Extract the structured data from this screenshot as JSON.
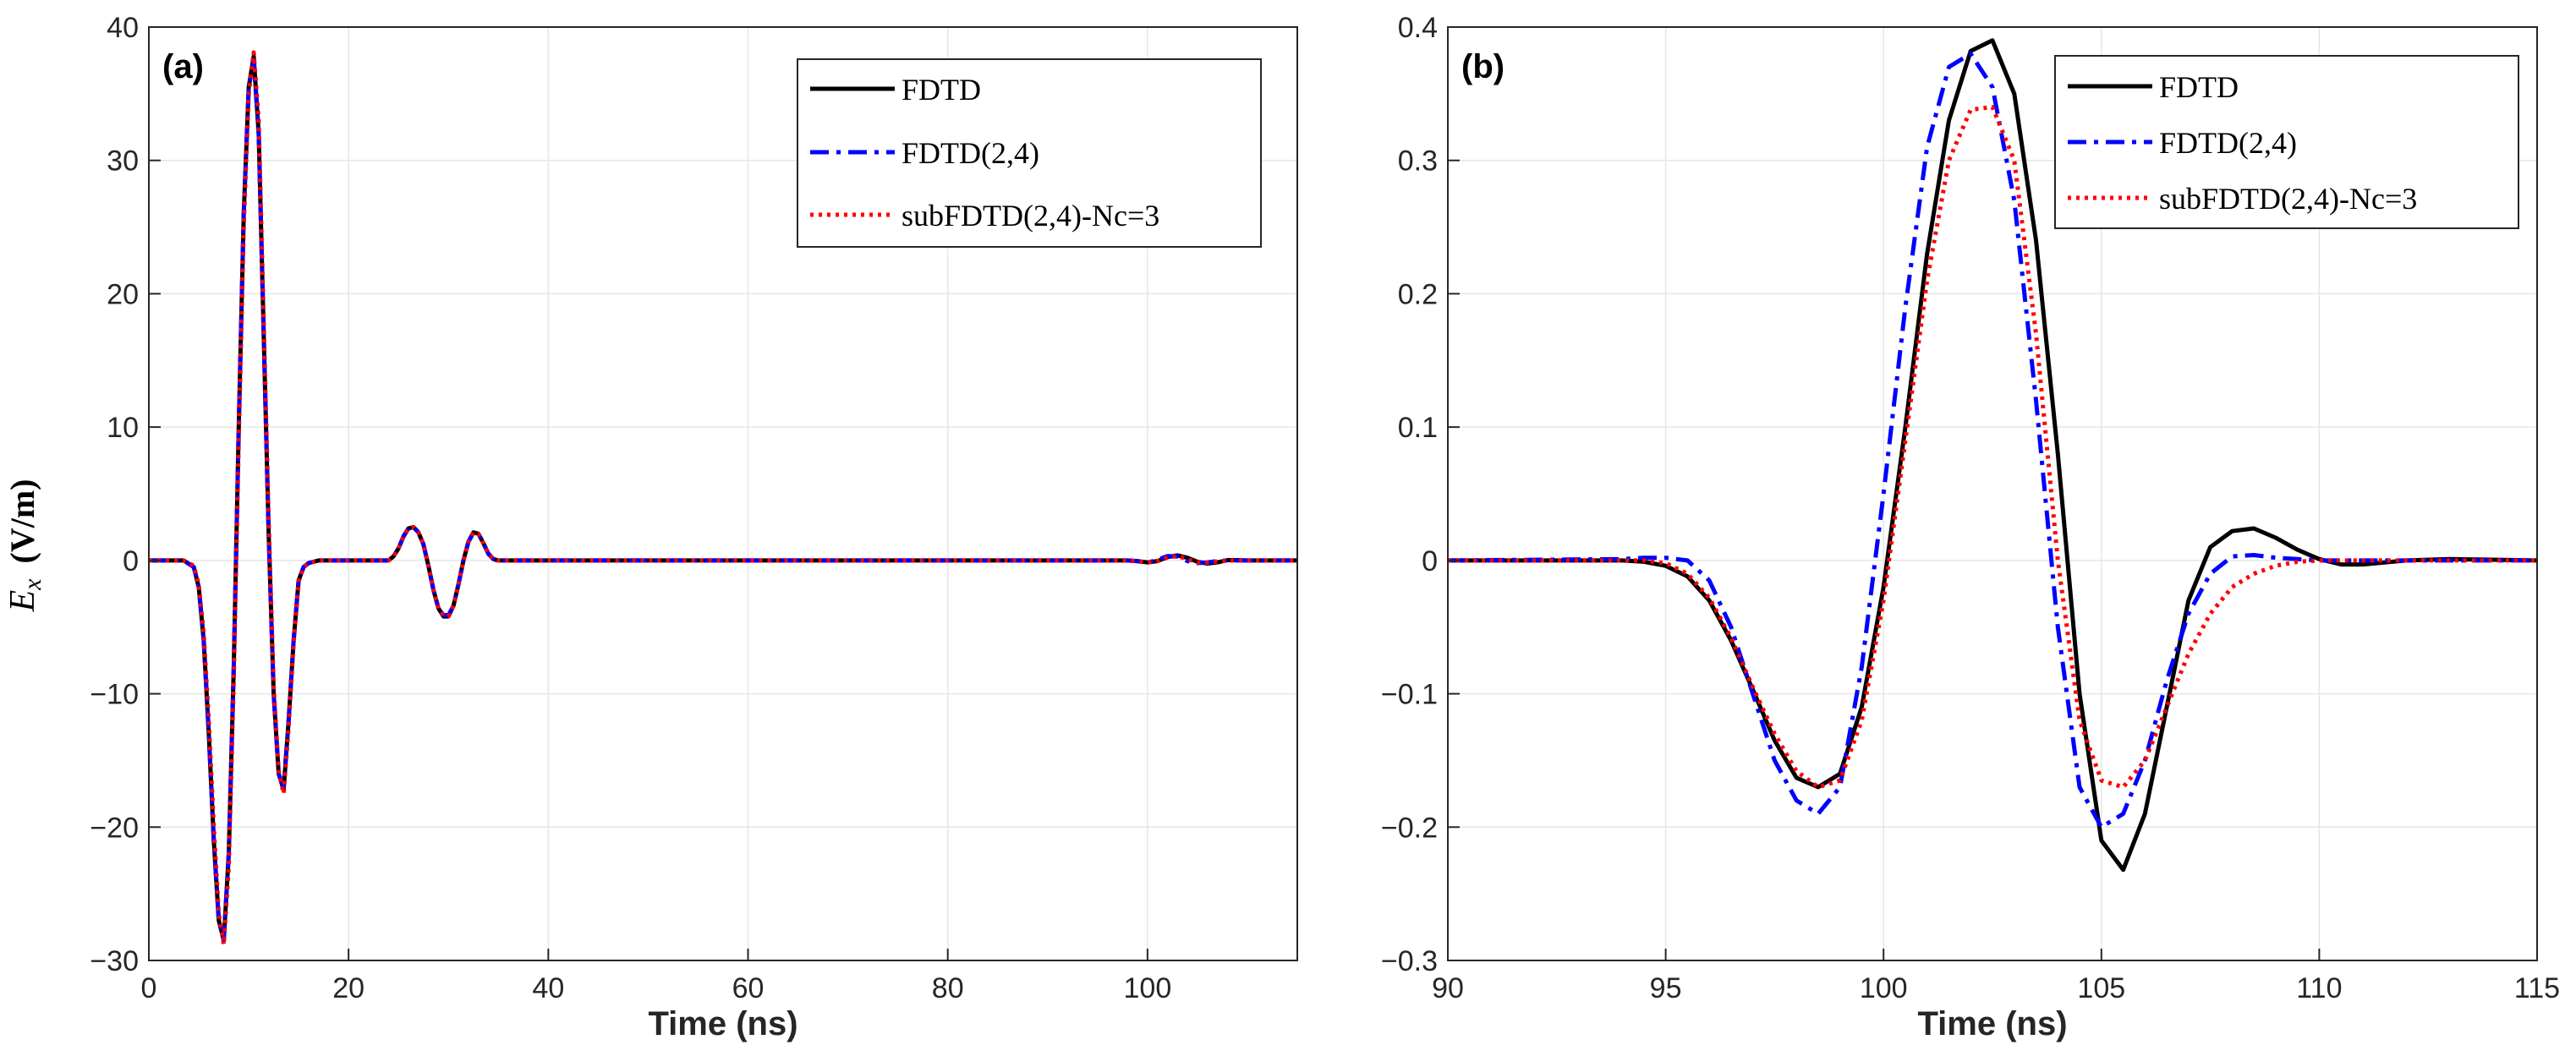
{
  "colors": {
    "grid": "#e6e6e6",
    "axis": "#262626",
    "fdtd": "#000000",
    "fdtd24": "#0000ff",
    "sub": "#ff0000"
  },
  "ylabel": {
    "main": "E",
    "sub": "x",
    "unit": "(V/m)"
  },
  "chart_data": [
    {
      "type": "line",
      "panel_label": "(a)",
      "xlabel": "Time (ns)",
      "xlim": [
        0,
        115
      ],
      "ylim": [
        -30,
        40
      ],
      "xticks": [
        0,
        20,
        40,
        60,
        80,
        100
      ],
      "yticks": [
        -30,
        -20,
        -10,
        0,
        10,
        20,
        30,
        40
      ],
      "xtick_labels": [
        "0",
        "20",
        "40",
        "60",
        "80",
        "100"
      ],
      "ytick_labels": [
        "−30",
        "−20",
        "−10",
        "0",
        "10",
        "20",
        "30",
        "40"
      ],
      "grid": true,
      "legend_position": "top-right",
      "series": [
        {
          "name": "FDTD",
          "style": "solid",
          "color": "#000000",
          "x": [
            0,
            3.5,
            4.5,
            5,
            5.5,
            6,
            6.5,
            7,
            7.5,
            8,
            8.5,
            9,
            9.5,
            10,
            10.5,
            11,
            11.5,
            12,
            12.5,
            13,
            13.5,
            14,
            14.5,
            15,
            15.5,
            16,
            17,
            20,
            24,
            24.5,
            25,
            25.5,
            26,
            26.5,
            27,
            27.5,
            28,
            28.5,
            29,
            29.5,
            30,
            30.5,
            31,
            31.5,
            32,
            32.5,
            33,
            33.5,
            34,
            34.5,
            35,
            35.5,
            36,
            98,
            99,
            100,
            101,
            102,
            103,
            104,
            105,
            106,
            107,
            108,
            109,
            110,
            115
          ],
          "y": [
            0,
            0,
            -0.5,
            -2,
            -6,
            -13,
            -21,
            -27,
            -28.5,
            -22,
            -8,
            10,
            26,
            35.5,
            37.8,
            32,
            17,
            2,
            -10,
            -16,
            -17.2,
            -12,
            -6,
            -1.5,
            -0.5,
            -0.2,
            0,
            0,
            0,
            0.3,
            0.9,
            1.8,
            2.4,
            2.5,
            2.1,
            1.2,
            -0.4,
            -2.2,
            -3.6,
            -4.2,
            -4.2,
            -3.4,
            -1.8,
            0,
            1.4,
            2.1,
            2,
            1.3,
            0.5,
            0.1,
            0,
            0,
            0,
            0,
            -0.05,
            -0.15,
            -0.05,
            0.25,
            0.38,
            0.2,
            -0.1,
            -0.23,
            -0.15,
            0.02,
            0.02,
            0,
            0
          ]
        },
        {
          "name": "FDTD(2,4)",
          "style": "dashdot",
          "color": "#0000ff",
          "x": [
            0,
            3.5,
            4.5,
            5,
            5.5,
            6,
            6.5,
            7,
            7.5,
            8,
            8.5,
            9,
            9.5,
            10,
            10.5,
            11,
            11.5,
            12,
            12.5,
            13,
            13.5,
            14,
            14.5,
            15,
            15.5,
            16,
            17,
            20,
            24,
            24.5,
            25,
            25.5,
            26,
            26.5,
            27,
            27.5,
            28,
            28.5,
            29,
            29.5,
            30,
            30.5,
            31,
            31.5,
            32,
            32.5,
            33,
            33.5,
            34,
            34.5,
            35,
            35.5,
            36,
            98,
            99,
            100,
            101,
            102,
            103,
            104,
            105,
            106,
            107,
            108,
            109,
            110,
            115
          ],
          "y": [
            0,
            0,
            -0.5,
            -2,
            -6,
            -13,
            -21,
            -27,
            -28.5,
            -22,
            -8,
            10,
            26,
            35.5,
            37.5,
            32,
            17,
            2,
            -10,
            -16,
            -17,
            -12,
            -6,
            -1.5,
            -0.5,
            -0.2,
            0,
            0,
            0,
            0.3,
            0.9,
            1.8,
            2.4,
            2.5,
            2.1,
            1.2,
            -0.4,
            -2.2,
            -3.6,
            -4.1,
            -4.1,
            -3.4,
            -1.8,
            0,
            1.4,
            2.1,
            2,
            1.3,
            0.5,
            0.1,
            0,
            0,
            0,
            0,
            -0.06,
            -0.17,
            0.05,
            0.33,
            0.3,
            -0.05,
            -0.2,
            -0.15,
            -0.04,
            0,
            0,
            0,
            0
          ]
        },
        {
          "name": "subFDTD(2,4)-Nc=3",
          "style": "dotted",
          "color": "#ff0000",
          "x": [
            0,
            3.5,
            4.5,
            5,
            5.5,
            6,
            6.5,
            7,
            7.5,
            8,
            8.5,
            9,
            9.5,
            10,
            10.5,
            11,
            11.5,
            12,
            12.5,
            13,
            13.5,
            14,
            14.5,
            15,
            15.5,
            16,
            17,
            20,
            24,
            24.5,
            25,
            25.5,
            26,
            26.5,
            27,
            27.5,
            28,
            28.5,
            29,
            29.5,
            30,
            30.5,
            31,
            31.5,
            32,
            32.5,
            33,
            33.5,
            34,
            34.5,
            35,
            35.5,
            36,
            98,
            99,
            100,
            101,
            102,
            103,
            104,
            105,
            106,
            107,
            108,
            109,
            110,
            115
          ],
          "y": [
            0,
            0,
            -0.4,
            -1.8,
            -5.5,
            -12,
            -20,
            -26.5,
            -28.8,
            -23,
            -9,
            9,
            25,
            35,
            38.1,
            33,
            18,
            3,
            -9.5,
            -15.8,
            -17.5,
            -12.5,
            -6.2,
            -1.6,
            -0.5,
            -0.2,
            0,
            0,
            0,
            0.3,
            0.9,
            1.8,
            2.4,
            2.5,
            2.1,
            1.2,
            -0.4,
            -2.2,
            -3.6,
            -4.1,
            -4.2,
            -3.4,
            -1.8,
            0,
            1.4,
            2.1,
            2,
            1.3,
            0.5,
            0.1,
            0,
            0,
            0,
            0,
            -0.06,
            -0.16,
            -0.05,
            0.22,
            0.33,
            0.1,
            -0.14,
            -0.16,
            -0.08,
            -0.01,
            0,
            0,
            0
          ]
        }
      ]
    },
    {
      "type": "line",
      "panel_label": "(b)",
      "xlabel": "Time (ns)",
      "xlim": [
        90,
        115
      ],
      "ylim": [
        -0.3,
        0.4
      ],
      "xticks": [
        90,
        95,
        100,
        105,
        110,
        115
      ],
      "yticks": [
        -0.3,
        -0.2,
        -0.1,
        0,
        0.1,
        0.2,
        0.3,
        0.4
      ],
      "xtick_labels": [
        "90",
        "95",
        "100",
        "105",
        "110",
        "115"
      ],
      "ytick_labels": [
        "−0.3",
        "−0.2",
        "−0.1",
        "0",
        "0.1",
        "0.2",
        "0.3",
        "0.4"
      ],
      "grid": true,
      "legend_position": "top-right",
      "series": [
        {
          "name": "FDTD",
          "style": "solid",
          "color": "#000000",
          "x": [
            90,
            94,
            94.5,
            95,
            95.5,
            96,
            96.5,
            97,
            97.5,
            98,
            98.5,
            99,
            99.5,
            100,
            100.5,
            101,
            101.5,
            102,
            102.5,
            103,
            103.5,
            104,
            104.5,
            105,
            105.5,
            106,
            106.5,
            107,
            107.5,
            108,
            108.5,
            109,
            109.5,
            110,
            110.5,
            111,
            112,
            113,
            115
          ],
          "y": [
            0,
            0,
            -0.001,
            -0.004,
            -0.012,
            -0.03,
            -0.06,
            -0.097,
            -0.135,
            -0.163,
            -0.17,
            -0.16,
            -0.11,
            -0.02,
            0.1,
            0.23,
            0.33,
            0.382,
            0.39,
            0.35,
            0.24,
            0.08,
            -0.1,
            -0.21,
            -0.232,
            -0.19,
            -0.11,
            -0.03,
            0.01,
            0.022,
            0.024,
            0.017,
            0.008,
            0.001,
            -0.003,
            -0.003,
            0,
            0.001,
            0
          ]
        },
        {
          "name": "FDTD(2,4)",
          "style": "dashdot",
          "color": "#0000ff",
          "x": [
            90,
            94,
            94.5,
            95,
            95.5,
            96,
            96.5,
            97,
            97.5,
            98,
            98.5,
            99,
            99.5,
            100,
            100.5,
            101,
            101.5,
            102,
            102.5,
            103,
            103.5,
            104,
            104.5,
            105,
            105.5,
            106,
            106.5,
            107,
            107.5,
            108,
            108.5,
            109,
            109.5,
            110,
            110.5,
            111,
            112,
            113,
            115
          ],
          "y": [
            0,
            0.001,
            0.002,
            0.002,
            0,
            -0.015,
            -0.05,
            -0.1,
            -0.15,
            -0.18,
            -0.19,
            -0.17,
            -0.08,
            0.05,
            0.19,
            0.31,
            0.37,
            0.38,
            0.355,
            0.27,
            0.12,
            -0.05,
            -0.17,
            -0.2,
            -0.19,
            -0.15,
            -0.09,
            -0.04,
            -0.01,
            0.003,
            0.004,
            0.002,
            0.001,
            0,
            0,
            0,
            0,
            0,
            0
          ]
        },
        {
          "name": "subFDTD(2,4)-Nc=3",
          "style": "dotted",
          "color": "#ff0000",
          "x": [
            90,
            94,
            94.5,
            95,
            95.5,
            96,
            96.5,
            97,
            97.5,
            98,
            98.5,
            99,
            99.5,
            100,
            100.5,
            101,
            101.5,
            102,
            102.5,
            103,
            103.5,
            104,
            104.5,
            105,
            105.5,
            106,
            106.5,
            107,
            107.5,
            108,
            108.5,
            109,
            109.5,
            110,
            110.5,
            111,
            112,
            113,
            115
          ],
          "y": [
            0,
            0,
            0,
            -0.002,
            -0.01,
            -0.028,
            -0.058,
            -0.095,
            -0.13,
            -0.158,
            -0.17,
            -0.165,
            -0.12,
            -0.03,
            0.09,
            0.21,
            0.3,
            0.338,
            0.34,
            0.3,
            0.17,
            0.0,
            -0.12,
            -0.165,
            -0.17,
            -0.15,
            -0.11,
            -0.07,
            -0.04,
            -0.02,
            -0.01,
            -0.004,
            -0.001,
            0,
            0,
            0,
            0,
            0,
            0
          ]
        }
      ]
    }
  ]
}
